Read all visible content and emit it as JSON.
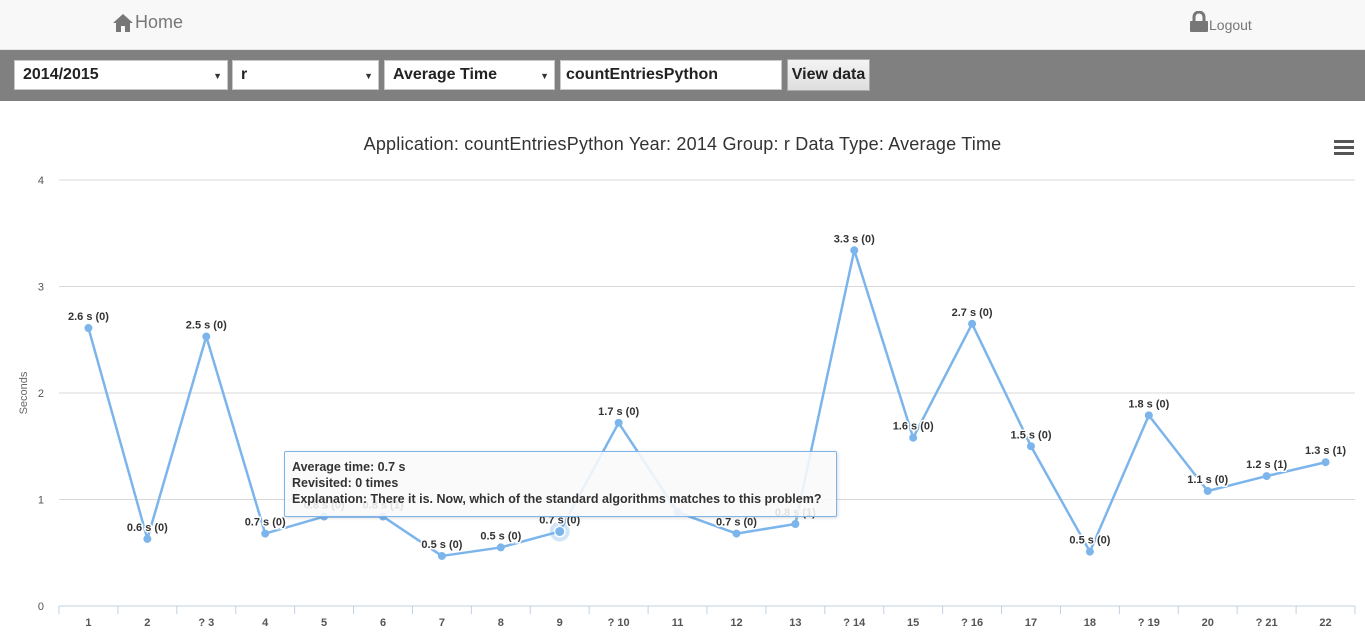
{
  "nav": {
    "home_label": "Home",
    "logout_label": "Logout"
  },
  "filters": {
    "year_value": "2014/2015",
    "group_value": "r",
    "data_type_value": "Average Time",
    "application_value": "countEntriesPython",
    "view_button_label": "View data"
  },
  "chart_data": {
    "type": "line",
    "title": "Application: countEntriesPython Year: 2014 Group: r Data Type: Average Time",
    "ylabel": "Seconds",
    "xlabel": "",
    "ylim": [
      0,
      4
    ],
    "yticks": [
      "0",
      "1",
      "2",
      "3",
      "4"
    ],
    "grid": true,
    "legend": "none",
    "color": "#7cb5ec",
    "categories": [
      "1",
      "2",
      "? 3",
      "4",
      "5",
      "6",
      "7",
      "8",
      "9",
      "? 10",
      "11",
      "12",
      "13",
      "? 14",
      "15",
      "? 16",
      "17",
      "18",
      "? 19",
      "20",
      "? 21",
      "22"
    ],
    "values": [
      2.61,
      0.63,
      2.53,
      0.68,
      0.84,
      0.84,
      0.47,
      0.55,
      0.7,
      1.72,
      0.88,
      0.68,
      0.77,
      3.34,
      1.58,
      2.65,
      1.5,
      0.51,
      1.79,
      1.08,
      1.22,
      1.35
    ],
    "data_labels": [
      "2.6 s (0)",
      "0.6 s (0)",
      "2.5 s (0)",
      "0.7 s (0)",
      "0.8 s (0)",
      "0.8 s (1)",
      "0.5 s (0)",
      "0.5 s (0)",
      "0.7 s (0)",
      "1.7 s (0)",
      "",
      "0.7 s (0)",
      "0.8 s (1)",
      "3.3 s (0)",
      "1.6 s (0)",
      "2.7 s (0)",
      "1.5 s (0)",
      "0.5 s (0)",
      "1.8 s (0)",
      "1.1 s (0)",
      "1.2 s (1)",
      "1.3 s (1)"
    ],
    "highlighted_index": 8,
    "tooltip": {
      "line1": "Average time: 0.7 s",
      "line2": "Revisited: 0 times",
      "line3": "Explanation: There it is. Now, which of the standard algorithms matches to this problem?"
    }
  }
}
